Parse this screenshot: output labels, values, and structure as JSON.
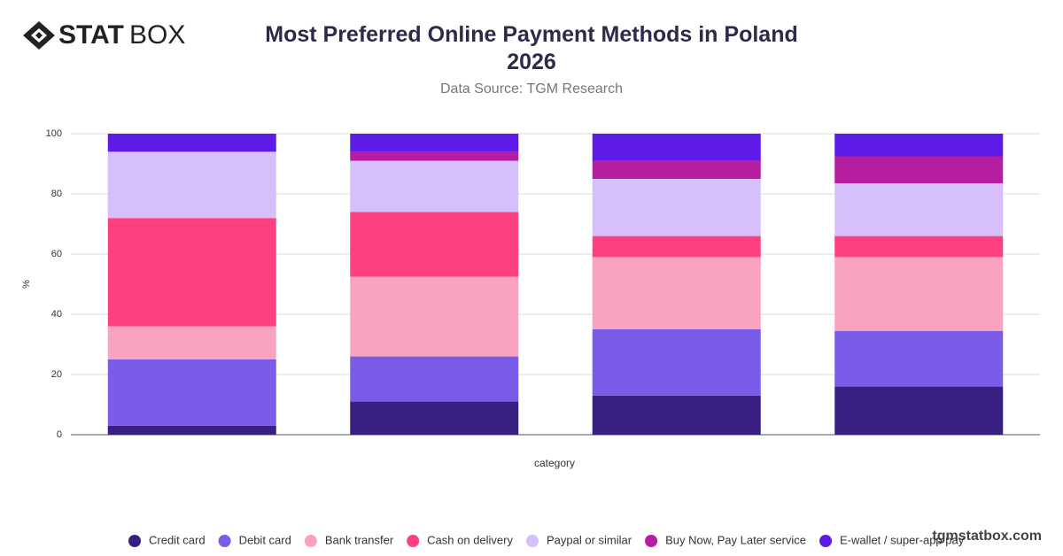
{
  "brand": {
    "bold": "STAT",
    "light": "BOX"
  },
  "watermark": "tgmstatbox.com",
  "chart_data": {
    "type": "stacked_bar",
    "title": "Most Preferred Online Payment Methods in Poland 2026",
    "subtitle": "Data Source: TGM Research",
    "x_label": "category",
    "y_label": "%",
    "categories": [
      null,
      null,
      null,
      null
    ],
    "ylim": [
      0,
      100
    ],
    "yticks": [
      0,
      20,
      40,
      60,
      80,
      100
    ],
    "grid": true,
    "legend": "bottom",
    "series": [
      {
        "name": "Credit card",
        "color": "#3a1f82",
        "values": [
          3,
          11,
          13,
          16
        ]
      },
      {
        "name": "Debit card",
        "color": "#7b5ce8",
        "values": [
          22,
          15,
          22,
          18.5
        ]
      },
      {
        "name": "Bank transfer",
        "color": "#f9a3c0",
        "values": [
          11,
          26.5,
          24,
          24.5
        ]
      },
      {
        "name": "Cash on delivery",
        "color": "#ff4080",
        "values": [
          36,
          21.5,
          7,
          7
        ]
      },
      {
        "name": "Paypal or similar",
        "color": "#d6bffa",
        "values": [
          22,
          17,
          19,
          17.5
        ]
      },
      {
        "name": "Buy Now, Pay Later service",
        "color": "#b51ea0",
        "values": [
          0,
          3,
          6,
          9
        ]
      },
      {
        "name": "E-wallet / super-app pay",
        "color": "#5e1ae6",
        "values": [
          6,
          6,
          9,
          7.5
        ]
      }
    ]
  }
}
